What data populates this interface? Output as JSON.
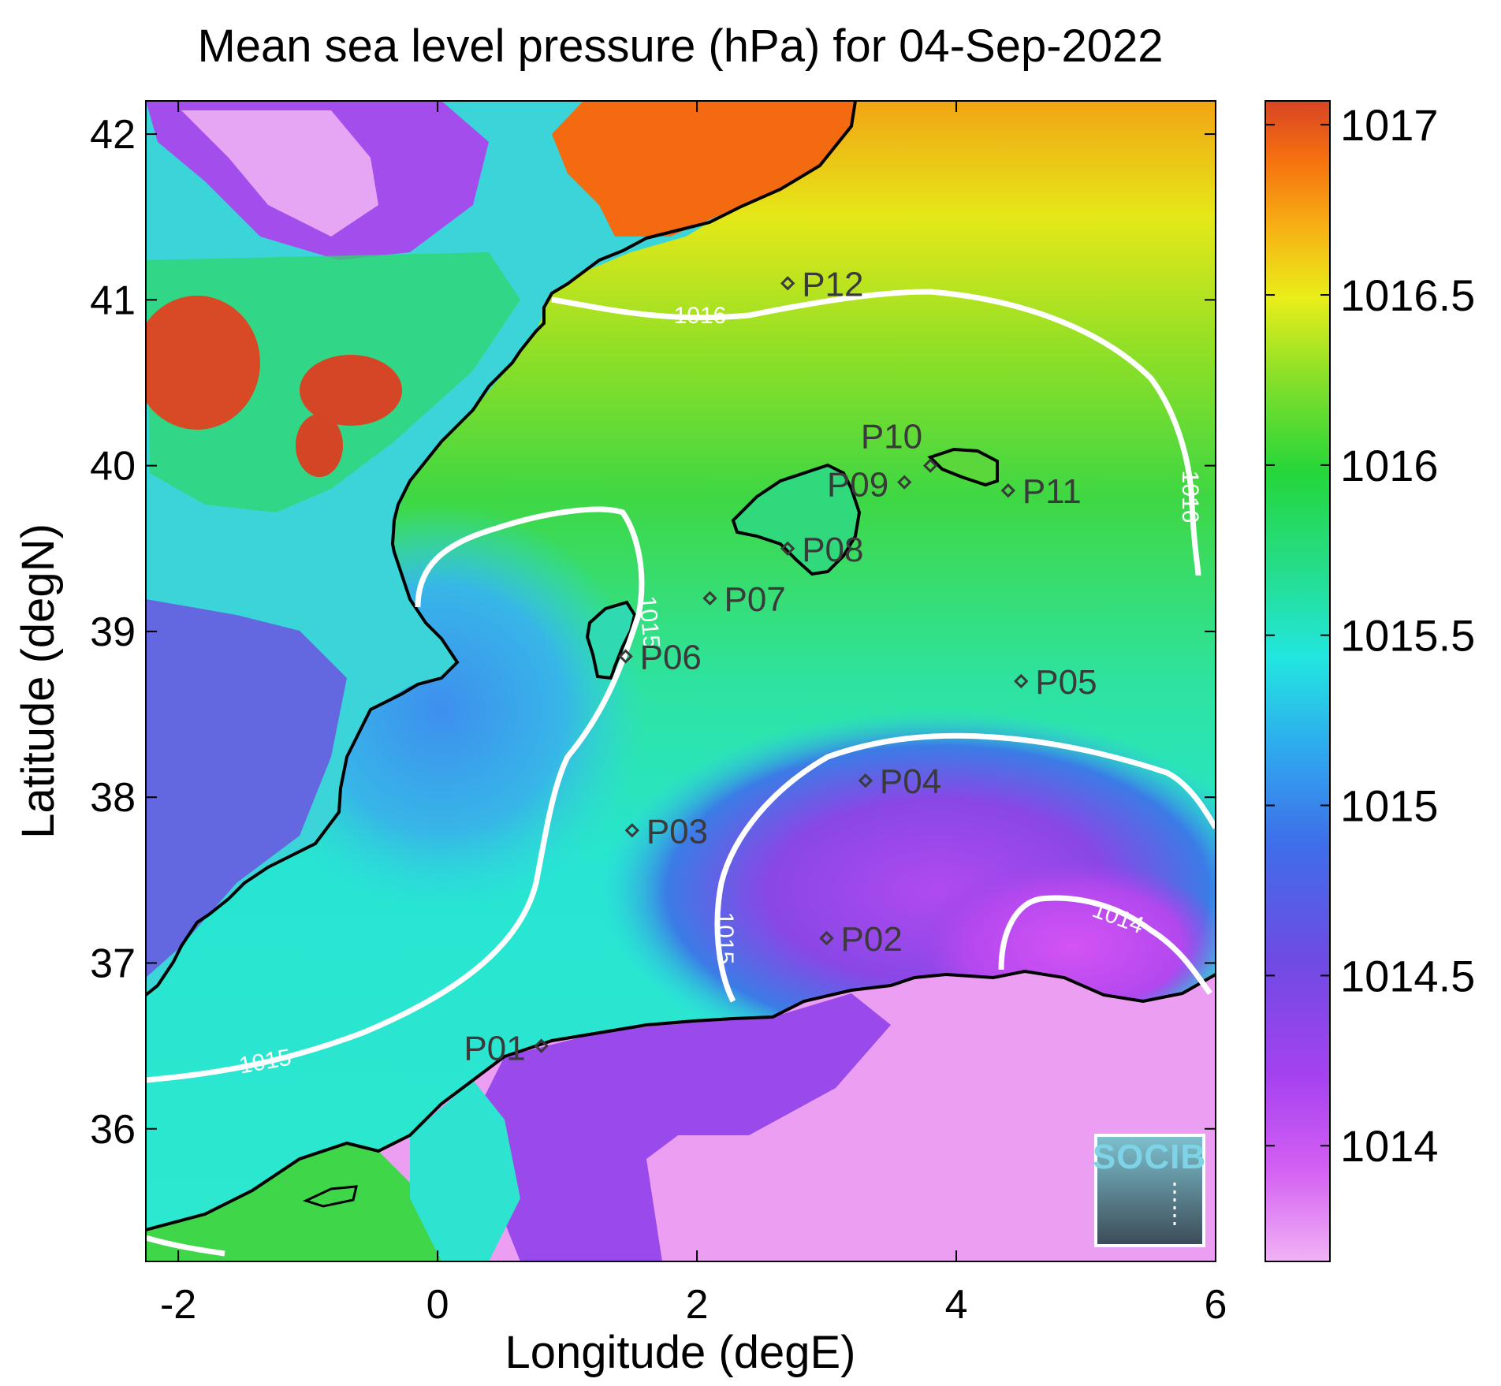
{
  "title": "Mean sea level pressure (hPa) for 04-Sep-2022",
  "xlabel": "Longitude (degE)",
  "ylabel": "Latitude (degN)",
  "x_ticks": [
    "-2",
    "0",
    "2",
    "4",
    "6"
  ],
  "y_ticks": [
    "42",
    "41",
    "40",
    "39",
    "38",
    "37",
    "36"
  ],
  "colorbar": {
    "ticks": [
      "1017",
      "1016.5",
      "1016",
      "1015.5",
      "1015",
      "1014.5",
      "1014"
    ],
    "colors": [
      "#ef9af3",
      "#c13ff2",
      "#7f45e0",
      "#2f86ee",
      "#24e6de",
      "#27d45a",
      "#7be12d",
      "#e9ec18",
      "#f7ab12",
      "#f4610f",
      "#d84324"
    ]
  },
  "contour_labels": [
    "1016",
    "1016",
    "1015",
    "1015",
    "1015",
    "1014"
  ],
  "points": [
    {
      "id": "P01",
      "lon": 0.8,
      "lat": 36.5
    },
    {
      "id": "P02",
      "lon": 3.0,
      "lat": 37.15
    },
    {
      "id": "P03",
      "lon": 1.5,
      "lat": 37.8
    },
    {
      "id": "P04",
      "lon": 3.3,
      "lat": 38.1
    },
    {
      "id": "P05",
      "lon": 4.5,
      "lat": 38.7
    },
    {
      "id": "P06",
      "lon": 1.45,
      "lat": 38.85
    },
    {
      "id": "P07",
      "lon": 2.1,
      "lat": 39.2
    },
    {
      "id": "P08",
      "lon": 2.7,
      "lat": 39.5
    },
    {
      "id": "P09",
      "lon": 3.6,
      "lat": 39.9
    },
    {
      "id": "P10",
      "lon": 3.8,
      "lat": 40.0
    },
    {
      "id": "P11",
      "lon": 4.4,
      "lat": 39.85
    },
    {
      "id": "P12",
      "lon": 2.7,
      "lat": 41.1
    }
  ],
  "logo": "SOCIB"
}
